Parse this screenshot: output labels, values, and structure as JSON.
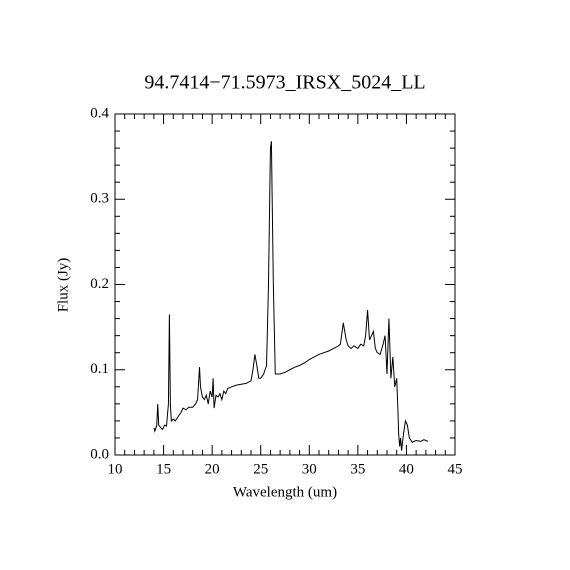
{
  "chart_data": {
    "type": "line",
    "title": "94.7414−71.5973_IRSX_5024_LL",
    "xlabel": "Wavelength (um)",
    "ylabel": "Flux (Jy)",
    "color": "#000000",
    "xlim": [
      10,
      45
    ],
    "xticks": [
      10,
      15,
      20,
      25,
      30,
      35,
      40,
      45
    ],
    "ylim": [
      0,
      0.4
    ],
    "yticks": [
      {
        "value": 0,
        "label": "0.0"
      },
      0.1,
      0.2,
      0.3,
      0.4
    ],
    "x": [
      14.0,
      14.1,
      14.3,
      14.4,
      14.5,
      14.7,
      14.9,
      15.1,
      15.3,
      15.5,
      15.6,
      15.7,
      15.8,
      16.0,
      16.2,
      16.5,
      16.8,
      17.0,
      17.3,
      17.6,
      18.0,
      18.3,
      18.5,
      18.7,
      18.8,
      19.0,
      19.2,
      19.4,
      19.6,
      19.8,
      20.0,
      20.1,
      20.2,
      20.4,
      20.6,
      20.8,
      21.0,
      21.2,
      21.4,
      21.6,
      22.0,
      22.5,
      23.0,
      23.5,
      24.0,
      24.2,
      24.4,
      24.6,
      24.8,
      25.0,
      25.3,
      25.6,
      25.8,
      26.0,
      26.1,
      26.3,
      26.5,
      27.0,
      27.5,
      28.0,
      28.5,
      29.0,
      29.5,
      30.0,
      30.5,
      31.0,
      31.5,
      32.0,
      32.5,
      33.0,
      33.2,
      33.5,
      33.8,
      34.0,
      34.3,
      34.6,
      35.0,
      35.3,
      35.6,
      35.8,
      36.0,
      36.2,
      36.4,
      36.6,
      36.8,
      37.0,
      37.3,
      37.6,
      37.8,
      38.0,
      38.2,
      38.4,
      38.6,
      38.8,
      39.0,
      39.1,
      39.2,
      39.3,
      39.4,
      39.5,
      39.7,
      39.9,
      40.1,
      40.3,
      40.6,
      41.0,
      41.5,
      41.8,
      42.2
    ],
    "values": [
      0.032,
      0.028,
      0.035,
      0.06,
      0.035,
      0.032,
      0.03,
      0.035,
      0.034,
      0.06,
      0.165,
      0.06,
      0.04,
      0.042,
      0.04,
      0.045,
      0.05,
      0.055,
      0.053,
      0.056,
      0.056,
      0.06,
      0.065,
      0.103,
      0.08,
      0.068,
      0.065,
      0.07,
      0.06,
      0.075,
      0.068,
      0.09,
      0.055,
      0.07,
      0.068,
      0.072,
      0.065,
      0.075,
      0.072,
      0.078,
      0.08,
      0.082,
      0.083,
      0.084,
      0.087,
      0.1,
      0.118,
      0.105,
      0.09,
      0.09,
      0.095,
      0.105,
      0.2,
      0.36,
      0.368,
      0.2,
      0.095,
      0.095,
      0.097,
      0.1,
      0.103,
      0.105,
      0.108,
      0.112,
      0.115,
      0.118,
      0.12,
      0.122,
      0.125,
      0.128,
      0.13,
      0.155,
      0.135,
      0.128,
      0.125,
      0.128,
      0.125,
      0.13,
      0.128,
      0.14,
      0.17,
      0.135,
      0.14,
      0.145,
      0.125,
      0.12,
      0.118,
      0.13,
      0.14,
      0.095,
      0.16,
      0.09,
      0.115,
      0.08,
      0.09,
      0.06,
      0.025,
      0.01,
      0.02,
      0.005,
      0.025,
      0.04,
      0.035,
      0.02,
      0.015,
      0.017,
      0.016,
      0.018,
      0.016
    ]
  }
}
